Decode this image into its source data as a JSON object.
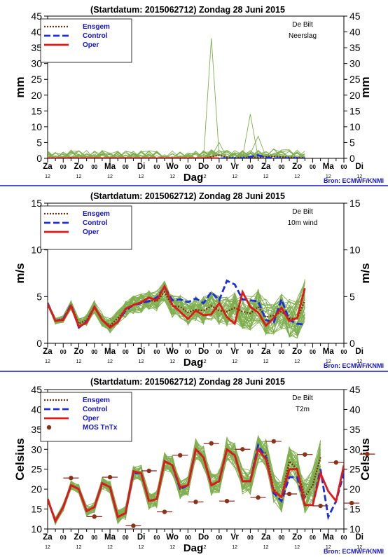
{
  "chart_data": [
    {
      "type": "line",
      "title": "(Startdatum: 2015062712)   Zondag    28 Juni      2015",
      "station": "De Bilt",
      "variable": "Neerslag",
      "ylabel": "mm",
      "xlabel": "Dag",
      "ylim": [
        0,
        45
      ],
      "yticks": [
        0,
        5,
        10,
        15,
        20,
        25,
        30,
        35,
        40,
        45
      ],
      "source": "Bron: ECMWF/KNMI",
      "legend": [
        "Ensgem",
        "Control",
        "Oper"
      ],
      "x_step_hours": 12,
      "series": [
        {
          "name": "Ensgem",
          "values": [
            0,
            0,
            0,
            0.2,
            0,
            0,
            0,
            0,
            0,
            0,
            0,
            0,
            0,
            0,
            0,
            0,
            0,
            0,
            0,
            0,
            0,
            0.5,
            1,
            0.3,
            0.2,
            0.3,
            0.2,
            0.3,
            0.5,
            0.6,
            0.4,
            0.3,
            0.2,
            0.2
          ]
        },
        {
          "name": "Control",
          "values": [
            0,
            0,
            0,
            0,
            0,
            0,
            0,
            0,
            0,
            0,
            0,
            0,
            0,
            0,
            0,
            0,
            0,
            0,
            0,
            0,
            0,
            0,
            0,
            0,
            0,
            0,
            0.5,
            1,
            0.3,
            0,
            0,
            0,
            0,
            0
          ]
        },
        {
          "name": "Oper",
          "values": [
            0,
            0,
            0,
            0,
            0,
            0,
            0,
            0,
            0,
            0,
            0,
            0,
            0,
            0,
            0,
            0,
            0,
            0,
            0,
            0,
            0,
            0,
            0
          ]
        }
      ],
      "members_envelope": {
        "peak_values": [
          {
            "x": 21,
            "value": 38
          },
          {
            "x": 26,
            "value": 14
          },
          {
            "x": 27,
            "value": 7
          }
        ]
      }
    },
    {
      "type": "line",
      "title": "(Startdatum: 2015062712)   Zondag    28 Juni      2015",
      "station": "De Bilt",
      "variable": "10m wind",
      "ylabel": "m/s",
      "xlabel": "Dag",
      "ylim": [
        0,
        15
      ],
      "yticks": [
        0,
        5,
        10,
        15
      ],
      "source": "Bron: ECMWF/KNMI",
      "legend": [
        "Ensgem",
        "Control",
        "Oper"
      ],
      "series": [
        {
          "name": "Ensgem",
          "values": [
            4.3,
            2.4,
            2.6,
            4.1,
            2.1,
            2.5,
            3.9,
            2.5,
            1.9,
            2.7,
            3.6,
            4.1,
            4.3,
            4.6,
            4.5,
            5.5,
            4.0,
            3.9,
            3.3,
            3.6,
            3.5,
            4.0,
            3.5,
            3.4,
            3.8,
            3.4,
            3.2,
            3.9,
            2.8,
            3.0,
            3.4,
            2.7,
            2.6,
            4.6
          ]
        },
        {
          "name": "Control",
          "values": [
            4.3,
            2.4,
            2.6,
            4.1,
            1.7,
            2.3,
            3.9,
            2.5,
            1.7,
            2.3,
            3.5,
            4.1,
            4.3,
            4.5,
            4.9,
            6.0,
            4.6,
            4.7,
            4.4,
            4.8,
            4.3,
            5.5,
            4.6,
            6.7,
            6.3,
            4.7,
            4.6,
            4.5,
            2.5,
            2.2,
            4.7,
            2.5,
            2.1,
            2.0
          ]
        },
        {
          "name": "Oper",
          "values": [
            4.2,
            2.4,
            2.5,
            4.0,
            1.8,
            2.2,
            3.9,
            2.5,
            1.7,
            2.3,
            3.7,
            4.1,
            4.4,
            4.9,
            4.6,
            6.1,
            4.1,
            3.4,
            2.6,
            3.5,
            3.0,
            3.1,
            4.3,
            2.8,
            2.1,
            5.5,
            3.9,
            3.3,
            1.9,
            2.7,
            3.8,
            2.4,
            2.7,
            5.9
          ]
        }
      ]
    },
    {
      "type": "line",
      "title": "(Startdatum: 2015062712)   Zondag    28 Juni      2015",
      "station": "De Bilt",
      "variable": "T2m",
      "ylabel": "Celsius",
      "xlabel": "Dag",
      "ylim": [
        10,
        45
      ],
      "yticks": [
        10,
        15,
        20,
        25,
        30,
        35,
        40,
        45
      ],
      "source": "Bron: ECMWF/KNMI",
      "legend": [
        "Ensgem",
        "Control",
        "Oper",
        "MOS TnTx"
      ],
      "series": [
        {
          "name": "Ensgem",
          "values": [
            17.5,
            12,
            15.5,
            21,
            20,
            14.5,
            15.5,
            21.5,
            20.5,
            13,
            14,
            24,
            24,
            17,
            17.5,
            27,
            26,
            20,
            21,
            30,
            28,
            21,
            22,
            30,
            28.5,
            22,
            22,
            30,
            29,
            20,
            18,
            27,
            25,
            18,
            21,
            28
          ]
        },
        {
          "name": "Control",
          "values": [
            17.5,
            12,
            15.5,
            21,
            20,
            14.5,
            15.5,
            21.5,
            20.5,
            13,
            14,
            24,
            24,
            17,
            17.5,
            27,
            26,
            20,
            21,
            30,
            28,
            21,
            22,
            30,
            28.5,
            22,
            22,
            31,
            28,
            19,
            17,
            23,
            23,
            16,
            16,
            25,
            13,
            17,
            24
          ]
        },
        {
          "name": "Oper",
          "values": [
            17.5,
            12,
            15.5,
            21,
            20,
            14.5,
            15.5,
            21.5,
            20.5,
            13,
            14,
            24.5,
            24,
            17,
            17.5,
            27,
            26,
            20.5,
            21,
            30,
            28,
            21,
            22,
            30,
            28.5,
            22,
            22,
            30,
            27.5,
            19.5,
            18,
            25,
            25,
            16,
            16,
            24,
            19.5,
            17,
            26
          ]
        },
        {
          "name": "MOS TnTx",
          "points": [
            [
              3,
              22.8
            ],
            [
              6,
              13.1
            ],
            [
              8,
              23
            ],
            [
              11,
              10.8
            ],
            [
              13,
              24.6
            ],
            [
              15,
              14.3
            ],
            [
              17,
              28.5
            ],
            [
              19,
              16.8
            ],
            [
              21,
              31.5
            ],
            [
              23,
              17
            ],
            [
              25,
              30
            ],
            [
              27,
              17.9
            ],
            [
              29,
              32
            ],
            [
              31,
              18.8
            ],
            [
              33,
              28.7
            ],
            [
              35,
              15.8
            ],
            [
              37,
              26.7
            ],
            [
              39,
              16.5
            ],
            [
              41,
              28.8
            ]
          ]
        }
      ]
    }
  ],
  "xaxis": {
    "day_labels": [
      "Za",
      "Zo",
      "Ma",
      "Di",
      "Wo",
      "Do",
      "Vr",
      "Za",
      "Zo",
      "Ma",
      "Di"
    ],
    "midnight_label": "00",
    "noon_label": "12"
  }
}
